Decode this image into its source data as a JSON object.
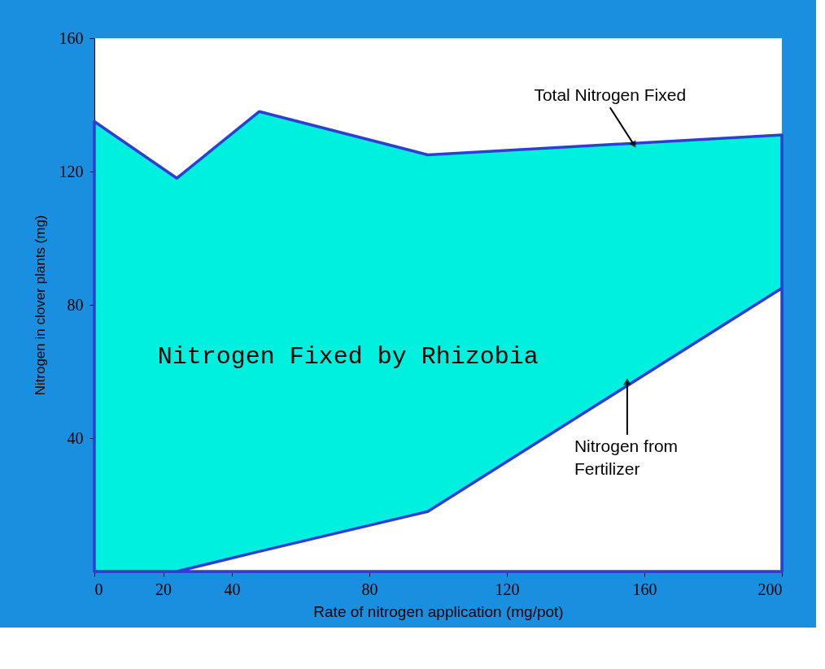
{
  "chart_data": {
    "type": "area",
    "xlabel": "Rate of nitrogen application (mg/pot)",
    "ylabel": "Nitrogen in clover plants (mg)",
    "xlim": [
      0,
      200
    ],
    "xticks": [
      0,
      20,
      40,
      80,
      120,
      160,
      200
    ],
    "ylim": [
      0,
      160
    ],
    "yticks": [
      40,
      80,
      120,
      160
    ],
    "grid": false,
    "legend": false,
    "line_style": "solid",
    "x": [
      0,
      24,
      48,
      97,
      200
    ],
    "series": [
      {
        "name": "Nitrogen Fixed by Rhizobia",
        "color": "#00f0e0",
        "values": [
          135,
          118,
          138,
          125,
          131
        ]
      },
      {
        "color": "#ffffff",
        "values": [
          0,
          0,
          6,
          18,
          85
        ]
      }
    ],
    "annotations": [
      {
        "text": "Total Nitrogen Fixed",
        "x": 157,
        "y": 128
      },
      {
        "text": "Nitrogen from Fertilizer",
        "x": 155,
        "y": 57
      }
    ]
  }
}
